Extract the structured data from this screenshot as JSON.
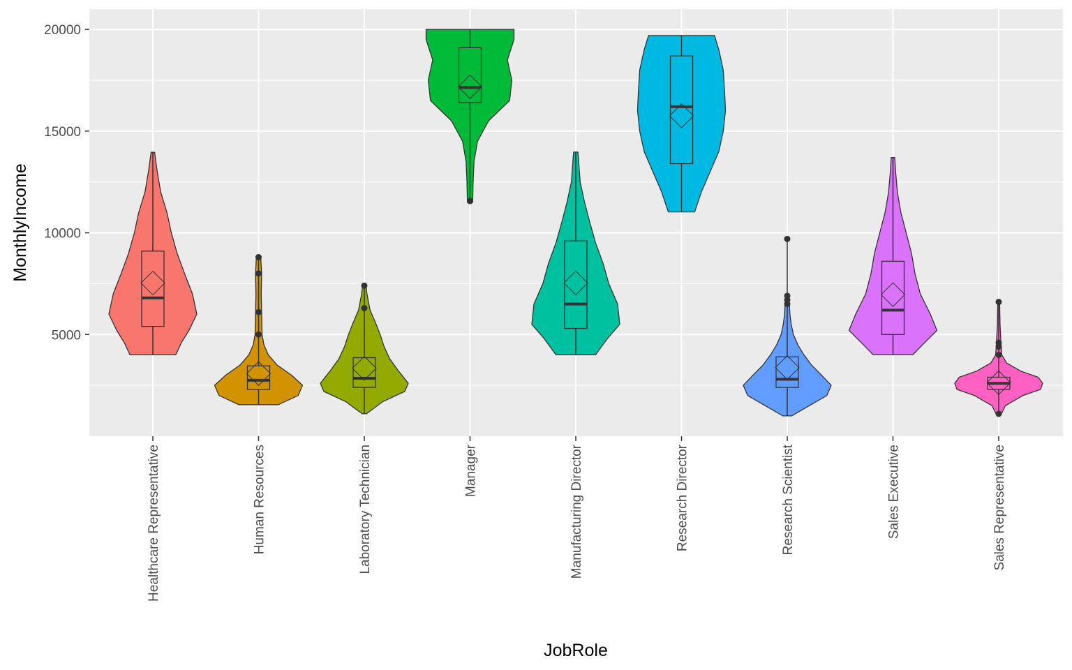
{
  "chart_data": {
    "type": "violin",
    "title": "",
    "xlabel": "JobRole",
    "ylabel": "MonthlyIncome",
    "ylim": [
      0,
      21000
    ],
    "y_ticks": [
      5000,
      10000,
      15000,
      20000
    ],
    "y_tick_labels": [
      "5000",
      "10000",
      "15000",
      "20000"
    ],
    "grid": true,
    "legend": "none",
    "panel_background": "#ebebeb",
    "grid_color": "#ffffff",
    "outline_color": "#333333",
    "categories": [
      "Healthcare Representative",
      "Human Resources",
      "Laboratory Technician",
      "Manager",
      "Manufacturing Director",
      "Research Director",
      "Research Scientist",
      "Sales Executive",
      "Sales Representative"
    ],
    "colors": [
      "#F8766D",
      "#D39200",
      "#93AA00",
      "#00BA38",
      "#00C19F",
      "#00B9E3",
      "#619CFF",
      "#DB72FB",
      "#FF61C3"
    ],
    "series": [
      {
        "category": "Healthcare Representative",
        "min": 4000,
        "q1": 5400,
        "median": 6800,
        "q3": 9100,
        "max": 13960,
        "mean": 7530,
        "outliers": [],
        "density": [
          [
            4000,
            0.52
          ],
          [
            4600,
            0.65
          ],
          [
            5200,
            0.82
          ],
          [
            6000,
            1.0
          ],
          [
            7000,
            0.9
          ],
          [
            8000,
            0.72
          ],
          [
            9000,
            0.55
          ],
          [
            10000,
            0.42
          ],
          [
            11000,
            0.32
          ],
          [
            12000,
            0.18
          ],
          [
            13000,
            0.1
          ],
          [
            13960,
            0.04
          ]
        ]
      },
      {
        "category": "Human Resources",
        "min": 1550,
        "q1": 2300,
        "median": 2750,
        "q3": 3460,
        "max": 8850,
        "mean": 3080,
        "outliers": [
          5000,
          6100,
          8000,
          8800
        ],
        "density": [
          [
            1550,
            0.45
          ],
          [
            2000,
            0.9
          ],
          [
            2500,
            1.0
          ],
          [
            3000,
            0.75
          ],
          [
            3500,
            0.42
          ],
          [
            4000,
            0.22
          ],
          [
            4500,
            0.12
          ],
          [
            5000,
            0.08
          ],
          [
            6000,
            0.07
          ],
          [
            7000,
            0.06
          ],
          [
            8000,
            0.07
          ],
          [
            8850,
            0.05
          ]
        ]
      },
      {
        "category": "Laboratory Technician",
        "min": 1100,
        "q1": 2400,
        "median": 2850,
        "q3": 3860,
        "max": 7400,
        "mean": 3340,
        "outliers": [
          6300,
          7400
        ],
        "density": [
          [
            1100,
            0.05
          ],
          [
            1700,
            0.42
          ],
          [
            2200,
            0.92
          ],
          [
            2600,
            1.0
          ],
          [
            3200,
            0.78
          ],
          [
            3800,
            0.58
          ],
          [
            4400,
            0.45
          ],
          [
            5000,
            0.36
          ],
          [
            5600,
            0.25
          ],
          [
            6200,
            0.13
          ],
          [
            7000,
            0.06
          ],
          [
            7400,
            0.04
          ]
        ]
      },
      {
        "category": "Manager",
        "min": 11500,
        "q1": 16400,
        "median": 17150,
        "q3": 19100,
        "max": 20000,
        "mean": 17180,
        "outliers": [
          11560
        ],
        "density": [
          [
            11500,
            0.06
          ],
          [
            12500,
            0.07
          ],
          [
            13500,
            0.09
          ],
          [
            14500,
            0.17
          ],
          [
            15500,
            0.42
          ],
          [
            16500,
            0.9
          ],
          [
            17500,
            0.95
          ],
          [
            18500,
            0.85
          ],
          [
            19500,
            1.0
          ],
          [
            20000,
            1.0
          ]
        ]
      },
      {
        "category": "Manufacturing Director",
        "min": 4000,
        "q1": 5300,
        "median": 6500,
        "q3": 9600,
        "max": 13970,
        "mean": 7530,
        "outliers": [],
        "density": [
          [
            4000,
            0.45
          ],
          [
            4800,
            0.72
          ],
          [
            5500,
            1.0
          ],
          [
            6500,
            0.95
          ],
          [
            7500,
            0.75
          ],
          [
            8500,
            0.62
          ],
          [
            9500,
            0.45
          ],
          [
            10500,
            0.32
          ],
          [
            11500,
            0.2
          ],
          [
            12500,
            0.1
          ],
          [
            13970,
            0.05
          ]
        ]
      },
      {
        "category": "Research Director",
        "min": 11030,
        "q1": 13400,
        "median": 16200,
        "q3": 18700,
        "max": 19700,
        "mean": 15750,
        "outliers": [],
        "density": [
          [
            11030,
            0.3
          ],
          [
            12000,
            0.45
          ],
          [
            13000,
            0.65
          ],
          [
            14000,
            0.85
          ],
          [
            15000,
            0.95
          ],
          [
            16000,
            1.0
          ],
          [
            17000,
            0.98
          ],
          [
            18000,
            0.95
          ],
          [
            19000,
            0.85
          ],
          [
            19700,
            0.75
          ]
        ]
      },
      {
        "category": "Research Scientist",
        "min": 1000,
        "q1": 2400,
        "median": 2800,
        "q3": 3900,
        "max": 9700,
        "mean": 3370,
        "outliers": [
          6500,
          6700,
          6900,
          9700
        ],
        "density": [
          [
            1000,
            0.1
          ],
          [
            1500,
            0.5
          ],
          [
            2000,
            0.9
          ],
          [
            2500,
            1.0
          ],
          [
            3000,
            0.78
          ],
          [
            3500,
            0.55
          ],
          [
            4000,
            0.38
          ],
          [
            4500,
            0.24
          ],
          [
            5000,
            0.14
          ],
          [
            5500,
            0.09
          ],
          [
            6000,
            0.06
          ],
          [
            6900,
            0.04
          ]
        ]
      },
      {
        "category": "Sales Executive",
        "min": 4000,
        "q1": 5000,
        "median": 6200,
        "q3": 8600,
        "max": 13700,
        "mean": 6960,
        "outliers": [],
        "density": [
          [
            4000,
            0.45
          ],
          [
            4600,
            0.72
          ],
          [
            5200,
            1.0
          ],
          [
            6000,
            0.85
          ],
          [
            7000,
            0.62
          ],
          [
            8000,
            0.5
          ],
          [
            9000,
            0.42
          ],
          [
            10000,
            0.3
          ],
          [
            11000,
            0.18
          ],
          [
            12000,
            0.1
          ],
          [
            13000,
            0.06
          ],
          [
            13700,
            0.04
          ]
        ]
      },
      {
        "category": "Sales Representative",
        "min": 1050,
        "q1": 2300,
        "median": 2600,
        "q3": 2900,
        "max": 6650,
        "mean": 2630,
        "outliers": [
          1100,
          4000,
          4400,
          4600,
          6600
        ],
        "density": [
          [
            1050,
            0.05
          ],
          [
            1500,
            0.15
          ],
          [
            2000,
            0.55
          ],
          [
            2300,
            0.95
          ],
          [
            2600,
            1.0
          ],
          [
            2900,
            0.9
          ],
          [
            3200,
            0.5
          ],
          [
            3600,
            0.18
          ],
          [
            4000,
            0.07
          ],
          [
            4600,
            0.05
          ],
          [
            5500,
            0.03
          ],
          [
            6650,
            0.02
          ]
        ]
      }
    ]
  }
}
